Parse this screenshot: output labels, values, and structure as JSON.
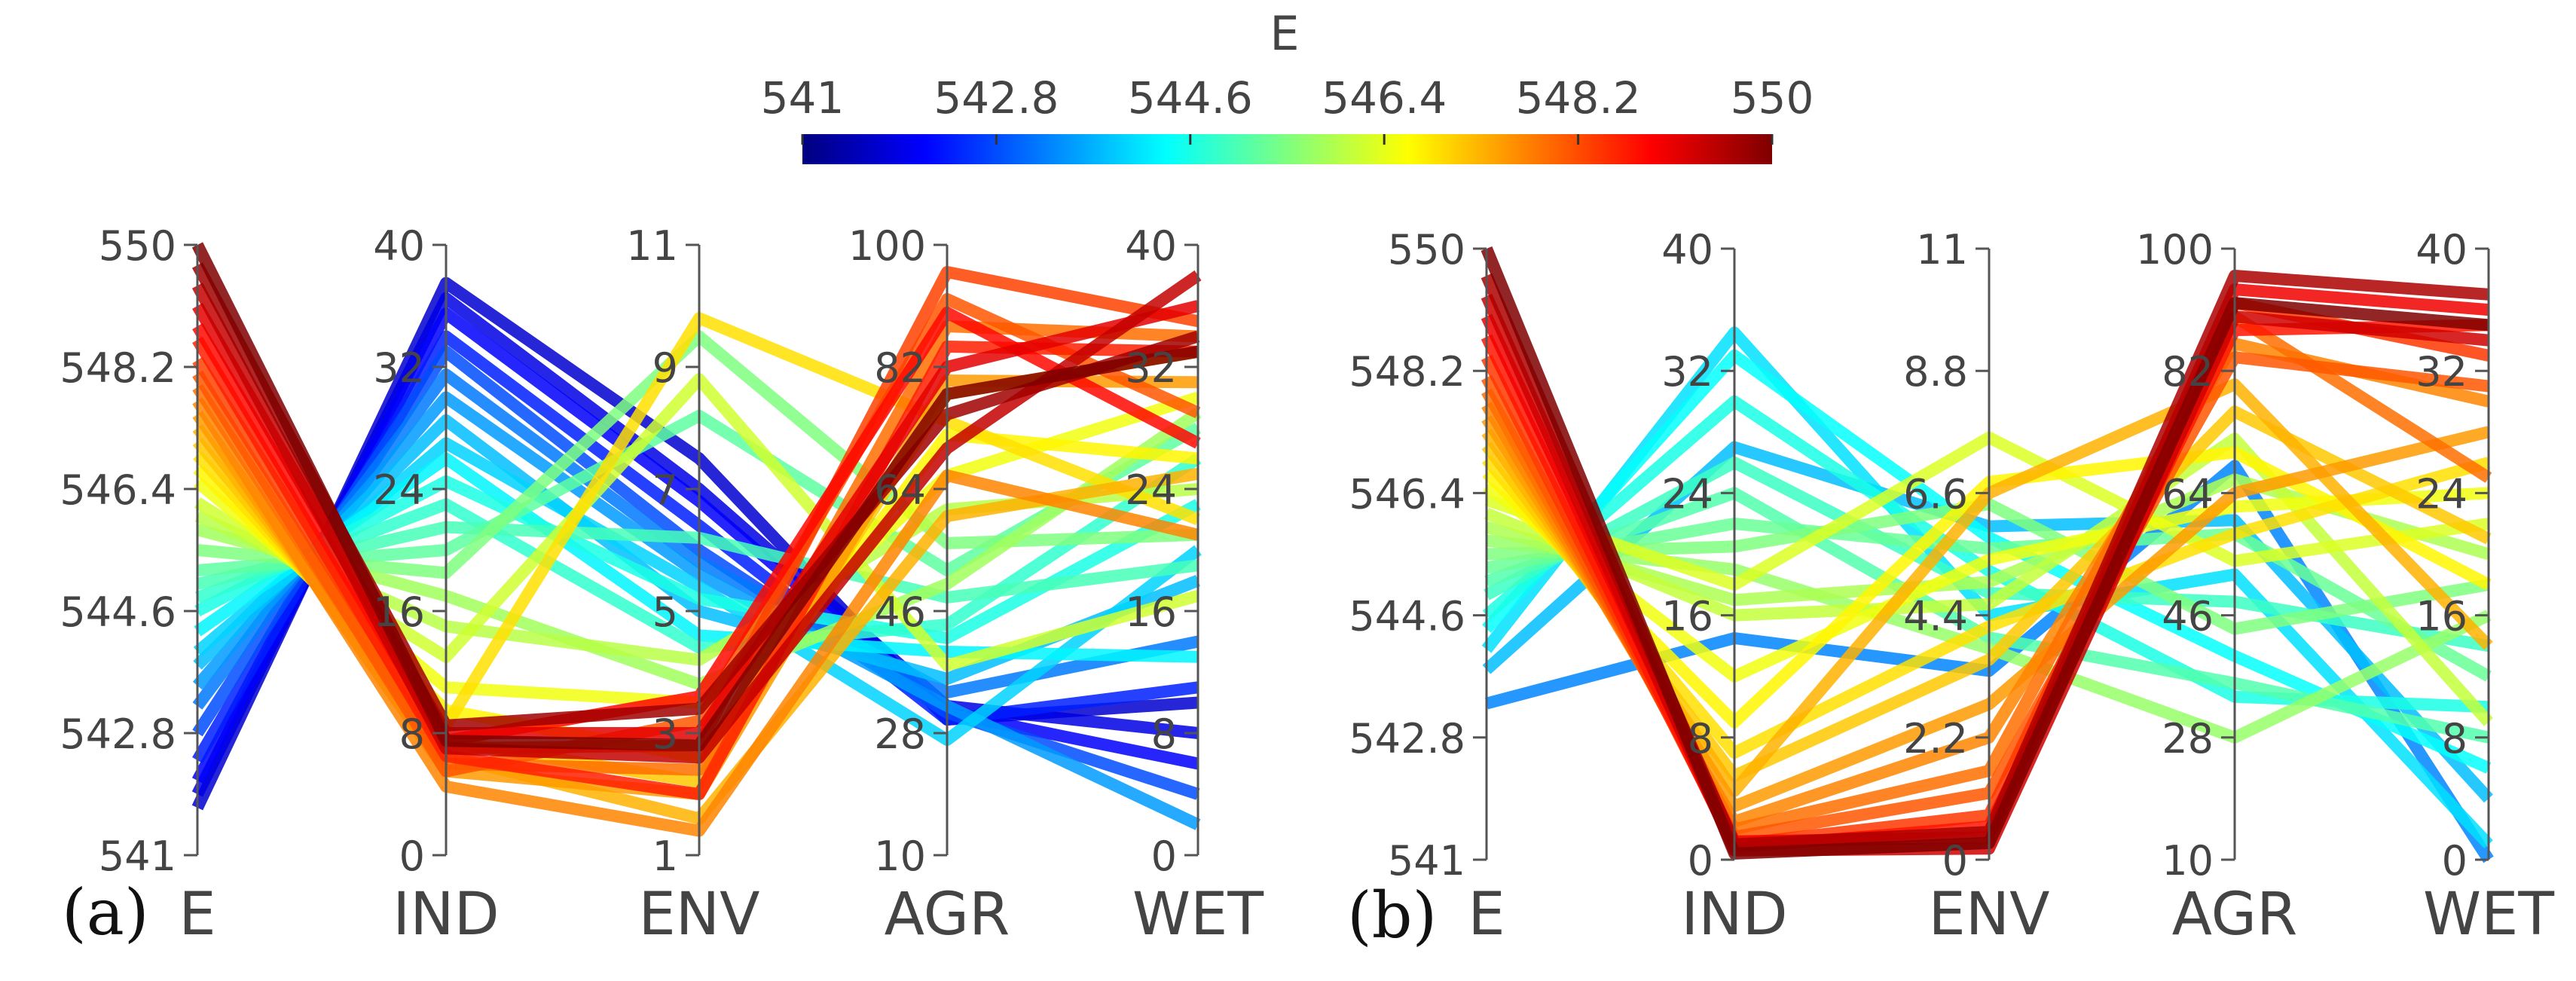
{
  "colorbar": {
    "title": "E",
    "ticks": [
      "541",
      "542.8",
      "544.6",
      "546.4",
      "548.2",
      "550"
    ],
    "range": [
      541,
      550
    ],
    "colormap": [
      "#00007f",
      "#0000ff",
      "#007fff",
      "#00ffff",
      "#7fff7f",
      "#ffff00",
      "#ff7f00",
      "#ff0000",
      "#7f0000"
    ]
  },
  "chart_data": [
    {
      "type": "parallel-coordinates",
      "panel_label": "(a)",
      "color_by": "E",
      "axes": [
        {
          "name": "E",
          "min": 541,
          "max": 550,
          "ticks": [
            "550",
            "548.2",
            "546.4",
            "544.6",
            "542.8",
            "541"
          ]
        },
        {
          "name": "IND",
          "min": 0,
          "max": 40,
          "ticks": [
            "40",
            "32",
            "24",
            "16",
            "8",
            "0"
          ]
        },
        {
          "name": "ENV",
          "min": 1,
          "max": 11,
          "ticks": [
            "11",
            "9",
            "7",
            "5",
            "3",
            "1"
          ]
        },
        {
          "name": "AGR",
          "min": 10,
          "max": 100,
          "ticks": [
            "100",
            "82",
            "64",
            "46",
            "28",
            "10"
          ]
        },
        {
          "name": "WET",
          "min": 0,
          "max": 40,
          "ticks": [
            "40",
            "32",
            "24",
            "16",
            "8",
            "0"
          ]
        }
      ],
      "lines": [
        [
          541.7,
          37.5,
          7.5,
          30,
          10
        ],
        [
          541.9,
          36.5,
          7.0,
          32,
          8
        ],
        [
          542.1,
          35.5,
          6.8,
          31,
          6
        ],
        [
          542.4,
          34.0,
          6.4,
          30,
          11
        ],
        [
          542.8,
          33.0,
          6.0,
          31,
          4
        ],
        [
          543.2,
          31.5,
          5.8,
          34,
          14
        ],
        [
          543.5,
          30.0,
          5.6,
          32,
          2
        ],
        [
          543.8,
          28.5,
          5.0,
          36,
          18
        ],
        [
          544.0,
          27.0,
          5.4,
          27,
          20
        ],
        [
          544.3,
          26.0,
          4.6,
          40,
          13
        ],
        [
          544.6,
          24.5,
          5.2,
          42,
          23
        ],
        [
          544.8,
          23.0,
          4.4,
          44,
          26
        ],
        [
          545.0,
          21.5,
          6.2,
          48,
          19
        ],
        [
          545.2,
          20.0,
          8.2,
          52,
          28
        ],
        [
          545.5,
          18.5,
          9.5,
          56,
          21
        ],
        [
          545.8,
          17.0,
          3.8,
          50,
          29
        ],
        [
          546.0,
          15.0,
          4.2,
          61,
          24
        ],
        [
          546.2,
          13.0,
          8.8,
          38,
          17
        ],
        [
          546.5,
          11.0,
          3.5,
          66,
          30
        ],
        [
          546.7,
          9.5,
          2.6,
          72,
          26
        ],
        [
          546.9,
          8.5,
          9.8,
          74,
          22
        ],
        [
          547.1,
          7.5,
          2.2,
          78,
          33
        ],
        [
          547.3,
          6.5,
          1.6,
          60,
          25
        ],
        [
          547.5,
          5.5,
          2.0,
          80,
          31
        ],
        [
          547.7,
          4.5,
          1.4,
          66,
          21
        ],
        [
          547.9,
          6.0,
          2.4,
          88,
          34
        ],
        [
          548.1,
          5.5,
          3.2,
          92,
          29
        ],
        [
          548.3,
          7.0,
          2.8,
          96,
          35
        ],
        [
          548.6,
          6.5,
          2.0,
          85,
          33
        ],
        [
          548.8,
          7.5,
          3.6,
          90,
          27
        ],
        [
          549.1,
          8.0,
          3.0,
          82,
          36
        ],
        [
          549.4,
          7.0,
          2.6,
          70,
          38
        ],
        [
          549.7,
          8.5,
          3.4,
          75,
          34
        ],
        [
          550.0,
          7.5,
          2.8,
          78,
          33
        ]
      ]
    },
    {
      "type": "parallel-coordinates",
      "panel_label": "(b)",
      "color_by": "E",
      "axes": [
        {
          "name": "E",
          "min": 541,
          "max": 550,
          "ticks": [
            "550",
            "548.2",
            "546.4",
            "544.6",
            "542.8",
            "541"
          ]
        },
        {
          "name": "IND",
          "min": 0,
          "max": 40,
          "ticks": [
            "40",
            "32",
            "24",
            "16",
            "8",
            "0"
          ]
        },
        {
          "name": "ENV",
          "min": 0,
          "max": 11,
          "ticks": [
            "11",
            "8.8",
            "6.6",
            "4.4",
            "2.2",
            "0"
          ]
        },
        {
          "name": "AGR",
          "min": 10,
          "max": 100,
          "ticks": [
            "100",
            "82",
            "64",
            "46",
            "28",
            "10"
          ]
        },
        {
          "name": "WET",
          "min": 0,
          "max": 40,
          "ticks": [
            "40",
            "32",
            "24",
            "16",
            "8",
            "0"
          ]
        }
      ],
      "lines": [
        [
          543.3,
          14.5,
          3.4,
          68,
          0
        ],
        [
          543.8,
          27.0,
          6.0,
          60,
          4
        ],
        [
          544.1,
          34.5,
          4.4,
          52,
          1
        ],
        [
          544.4,
          33.0,
          5.8,
          40,
          6
        ],
        [
          544.6,
          30.0,
          5.2,
          34,
          10
        ],
        [
          544.9,
          26.0,
          4.8,
          48,
          14
        ],
        [
          545.1,
          24.0,
          4.0,
          36,
          8
        ],
        [
          545.3,
          22.0,
          5.6,
          58,
          12
        ],
        [
          545.5,
          20.5,
          6.4,
          44,
          18
        ],
        [
          545.7,
          19.0,
          3.8,
          28,
          16
        ],
        [
          545.9,
          17.0,
          5.0,
          66,
          20
        ],
        [
          546.1,
          16.0,
          4.6,
          72,
          9
        ],
        [
          546.3,
          18.0,
          7.6,
          54,
          22
        ],
        [
          546.5,
          12.0,
          5.4,
          62,
          24
        ],
        [
          546.7,
          9.0,
          6.8,
          70,
          18
        ],
        [
          546.9,
          7.0,
          4.2,
          58,
          26
        ],
        [
          547.1,
          5.5,
          3.6,
          76,
          21
        ],
        [
          547.3,
          4.5,
          6.6,
          80,
          14
        ],
        [
          547.5,
          3.5,
          2.8,
          64,
          28
        ],
        [
          547.7,
          2.5,
          2.2,
          86,
          30
        ],
        [
          547.9,
          2.0,
          1.6,
          90,
          25
        ],
        [
          548.1,
          1.5,
          1.2,
          84,
          31
        ],
        [
          548.4,
          1.0,
          0.8,
          92,
          33
        ],
        [
          548.7,
          0.8,
          0.6,
          88,
          35
        ],
        [
          549.0,
          1.2,
          0.4,
          94,
          36
        ],
        [
          549.3,
          0.6,
          0.2,
          90,
          34
        ],
        [
          549.6,
          1.0,
          0.5,
          96,
          37
        ],
        [
          550.0,
          0.4,
          0.3,
          92,
          35
        ]
      ]
    }
  ]
}
